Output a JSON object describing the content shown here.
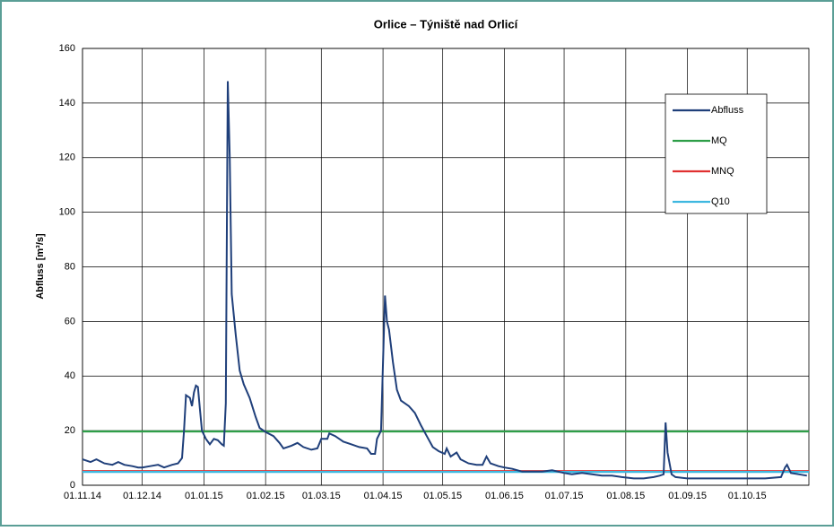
{
  "chart_data": {
    "type": "line",
    "title": "Orlice – Týniště nad Orlicí",
    "ylabel": "Abfluss [m³/s]",
    "xlim": [
      "01.11.14",
      "01.11.15"
    ],
    "xticks": [
      "01.11.14",
      "01.12.14",
      "01.01.15",
      "01.02.15",
      "01.03.15",
      "01.04.15",
      "01.05.15",
      "01.06.15",
      "01.07.15",
      "01.08.15",
      "01.09.15",
      "01.10.15"
    ],
    "ylim": [
      0,
      160
    ],
    "yticks": [
      0,
      20,
      40,
      60,
      80,
      100,
      120,
      140,
      160
    ],
    "grid": true,
    "legend": "upper right",
    "series": [
      {
        "name": "Abfluss",
        "color": "#1f3f7a",
        "x": [
          "01.11.14",
          "05.11.14",
          "08.11.14",
          "12.11.14",
          "16.11.14",
          "19.11.14",
          "22.11.14",
          "26.11.14",
          "29.11.14",
          "01.12.14",
          "05.12.14",
          "09.12.14",
          "12.12.14",
          "16.12.14",
          "19.12.14",
          "21.12.14",
          "22.12.14",
          "23.12.14",
          "25.12.14",
          "26.12.14",
          "27.12.14",
          "28.12.14",
          "29.12.14",
          "30.12.14",
          "31.12.14",
          "02.01.15",
          "04.01.15",
          "06.01.15",
          "08.01.15",
          "10.01.15",
          "11.01.15",
          "12.01.15",
          "13.01.15",
          "14.01.15",
          "15.01.15",
          "17.01.15",
          "19.01.15",
          "21.01.15",
          "24.01.15",
          "27.01.15",
          "29.01.15",
          "01.02.15",
          "05.02.15",
          "08.02.15",
          "10.02.15",
          "14.02.15",
          "17.02.15",
          "20.02.15",
          "24.02.15",
          "27.02.15",
          "01.03.15",
          "04.03.15",
          "05.03.15",
          "08.03.15",
          "12.03.15",
          "16.03.15",
          "20.03.15",
          "24.03.15",
          "26.03.15",
          "28.03.15",
          "29.03.15",
          "31.03.15",
          "01.04.15",
          "02.04.15",
          "03.04.15",
          "04.04.15",
          "06.04.15",
          "08.04.15",
          "10.04.15",
          "14.04.15",
          "17.04.15",
          "20.04.15",
          "23.04.15",
          "26.04.15",
          "29.04.15",
          "02.05.15",
          "03.05.15",
          "05.05.15",
          "08.05.15",
          "10.05.15",
          "14.05.15",
          "18.05.15",
          "21.05.15",
          "23.05.15",
          "25.05.15",
          "29.05.15",
          "01.06.15",
          "05.06.15",
          "10.06.15",
          "15.06.15",
          "20.06.15",
          "25.06.15",
          "01.07.15",
          "05.07.15",
          "10.07.15",
          "15.07.15",
          "20.07.15",
          "25.07.15",
          "30.07.15",
          "05.08.15",
          "10.08.15",
          "15.08.15",
          "18.08.15",
          "20.08.15",
          "21.08.15",
          "22.08.15",
          "24.08.15",
          "26.08.15",
          "01.09.15",
          "10.09.15",
          "20.09.15",
          "30.09.15",
          "10.10.15",
          "18.10.15",
          "20.10.15",
          "21.10.15",
          "23.10.15",
          "27.10.15",
          "31.10.15"
        ],
        "values": [
          9.5,
          8.5,
          9.5,
          8,
          7.5,
          8.5,
          7.5,
          7,
          6.5,
          6.5,
          7,
          7.5,
          6.5,
          7.5,
          8,
          10,
          20,
          33,
          32,
          29,
          34,
          36.5,
          36,
          28,
          20,
          17,
          15,
          17,
          16.5,
          15,
          14.5,
          30,
          148,
          120,
          70,
          55,
          42,
          37,
          32,
          25,
          21,
          19.5,
          18,
          15.5,
          13.5,
          14.5,
          15.5,
          14,
          13,
          13.5,
          17,
          17,
          19,
          18,
          16,
          15,
          14,
          13.5,
          11.5,
          11.5,
          17,
          20,
          45,
          69.5,
          60,
          57,
          45,
          35,
          31,
          29,
          26.5,
          22,
          18,
          14,
          12.5,
          11.5,
          13.5,
          10.5,
          12,
          9.5,
          8,
          7.5,
          7.5,
          10.5,
          8,
          7,
          6.5,
          6,
          5,
          5,
          5,
          5.5,
          4.5,
          4,
          4.5,
          4,
          3.5,
          3.5,
          3,
          2.5,
          2.5,
          3,
          3.5,
          4,
          23,
          12,
          4,
          3,
          2.5,
          2.5,
          2.5,
          2.5,
          2.5,
          3,
          6.5,
          7.5,
          4.5,
          4,
          3.5
        ]
      },
      {
        "name": "MQ",
        "color": "#2e9e48",
        "x": [
          "01.11.14",
          "01.11.15"
        ],
        "values": [
          19.7,
          19.7
        ]
      },
      {
        "name": "MNQ",
        "color": "#e03030",
        "x": [
          "01.11.14",
          "01.11.15"
        ],
        "values": [
          5.2,
          5.2
        ]
      },
      {
        "name": "Q10",
        "color": "#3fb8e0",
        "x": [
          "01.11.14",
          "01.11.15"
        ],
        "values": [
          4.9,
          4.9
        ]
      }
    ]
  }
}
